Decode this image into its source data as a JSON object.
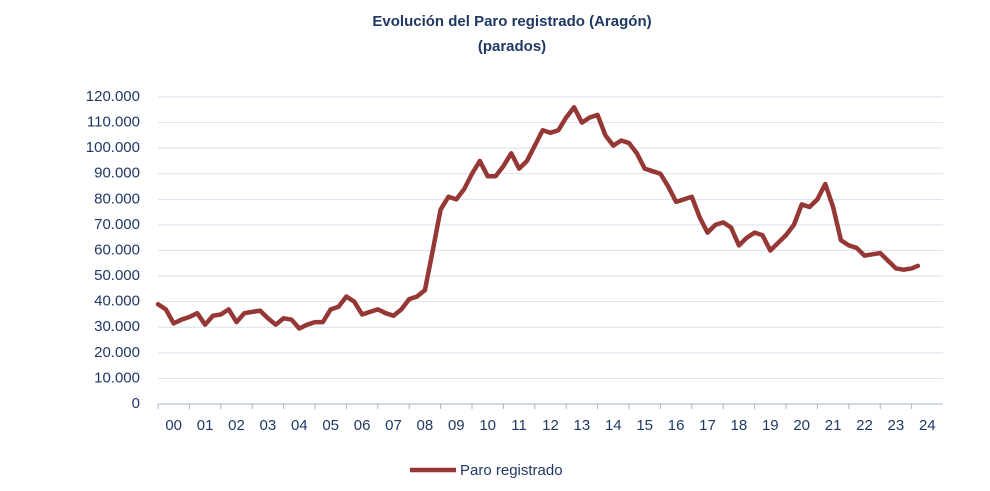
{
  "chart_data": {
    "type": "line",
    "title": "Evolución del Paro registrado (Aragón)",
    "subtitle": "(parados)",
    "categories": [
      "00",
      "01",
      "02",
      "03",
      "04",
      "05",
      "06",
      "07",
      "08",
      "09",
      "10",
      "11",
      "12",
      "13",
      "14",
      "15",
      "16",
      "17",
      "18",
      "19",
      "20",
      "21",
      "22",
      "23",
      "24"
    ],
    "xlim": [
      0,
      25
    ],
    "x": [
      0,
      0.25,
      0.5,
      0.75,
      1,
      1.25,
      1.5,
      1.75,
      2,
      2.25,
      2.5,
      2.75,
      3,
      3.25,
      3.5,
      3.75,
      4,
      4.25,
      4.5,
      4.75,
      5,
      5.25,
      5.5,
      5.75,
      6,
      6.25,
      6.5,
      6.75,
      7,
      7.25,
      7.5,
      7.75,
      8,
      8.25,
      8.5,
      8.75,
      9,
      9.25,
      9.5,
      9.75,
      10,
      10.25,
      10.5,
      10.75,
      11,
      11.25,
      11.5,
      11.75,
      12,
      12.25,
      12.5,
      12.75,
      13,
      13.25,
      13.5,
      13.75,
      14,
      14.25,
      14.5,
      14.75,
      15,
      15.25,
      15.5,
      15.75,
      16,
      16.25,
      16.5,
      16.75,
      17,
      17.25,
      17.5,
      17.75,
      18,
      18.25,
      18.5,
      18.75,
      19,
      19.25,
      19.5,
      19.75,
      20,
      20.25,
      20.5,
      20.75,
      21,
      21.25,
      21.5,
      21.75,
      22,
      22.25,
      22.5,
      22.75,
      23,
      23.25,
      23.5,
      23.75,
      24,
      24.2
    ],
    "series": [
      {
        "name": "Paro registrado",
        "color": "#953735",
        "values": [
          39000,
          37000,
          31500,
          33000,
          34000,
          35500,
          31000,
          34500,
          35000,
          37000,
          32000,
          35500,
          36000,
          36500,
          33500,
          31000,
          33500,
          33000,
          29500,
          31000,
          32000,
          32000,
          37000,
          38000,
          42000,
          40000,
          35000,
          36000,
          37000,
          35500,
          34500,
          37000,
          41000,
          42000,
          44500,
          60000,
          76000,
          81000,
          80000,
          84000,
          90000,
          95000,
          89000,
          89000,
          93000,
          98000,
          92000,
          95000,
          101000,
          107000,
          106000,
          107000,
          112000,
          116000,
          110000,
          112000,
          113000,
          105000,
          101000,
          103000,
          102000,
          98000,
          92000,
          91000,
          90000,
          85000,
          79000,
          80000,
          81000,
          73000,
          67000,
          70000,
          71000,
          69000,
          62000,
          65000,
          67000,
          66000,
          60000,
          63000,
          66000,
          70000,
          78000,
          77000,
          80000,
          86000,
          77000,
          64000,
          62000,
          61000,
          58000,
          58500,
          59000,
          56000,
          53000,
          52500,
          53000,
          54000
        ]
      }
    ],
    "ylim": [
      0,
      120000
    ],
    "yticks": [
      0,
      {
        "value": 10000,
        "label": "10.000"
      },
      {
        "value": 20000,
        "label": "20.000"
      },
      {
        "value": 30000,
        "label": "30.000"
      },
      {
        "value": 40000,
        "label": "40.000"
      },
      {
        "value": 50000,
        "label": "50.000"
      },
      {
        "value": 60000,
        "label": "60.000"
      },
      {
        "value": 70000,
        "label": "70.000"
      },
      {
        "value": 80000,
        "label": "80.000"
      },
      {
        "value": 90000,
        "label": "90.000"
      },
      {
        "value": 100000,
        "label": "100.000"
      },
      {
        "value": 110000,
        "label": "110.000"
      },
      {
        "value": 120000,
        "label": "120.000"
      }
    ],
    "grid": true
  }
}
